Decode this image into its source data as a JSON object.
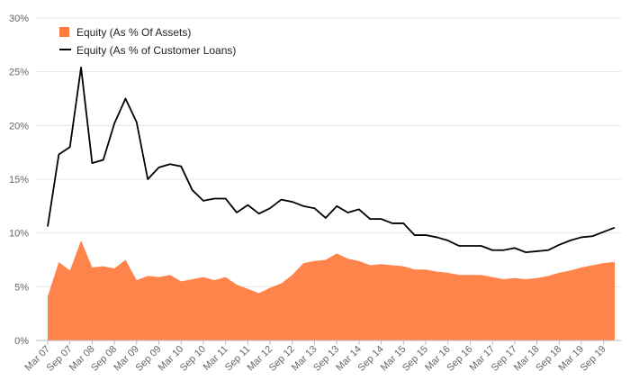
{
  "chart_data": {
    "type": "line",
    "title": "",
    "xlabel": "",
    "ylabel": "",
    "ylim": [
      0,
      30
    ],
    "y_ticks": [
      "0%",
      "5%",
      "10%",
      "15%",
      "20%",
      "25%",
      "30%"
    ],
    "y_tick_values": [
      0,
      5,
      10,
      15,
      20,
      25,
      30
    ],
    "x_tick_labels": [
      "Mar 07",
      "Sep 07",
      "Mar 08",
      "Sep 08",
      "Mar 09",
      "Sep 09",
      "Mar 10",
      "Sep 10",
      "Mar 11",
      "Sep 11",
      "Mar 12",
      "Sep 12",
      "Mar 13",
      "Sep 13",
      "Mar 14",
      "Sep 14",
      "Mar 15",
      "Sep 15",
      "Mar 16",
      "Sep 16",
      "Mar 17",
      "Sep 17",
      "Mar 18",
      "Sep 18",
      "Mar 19",
      "Sep 19"
    ],
    "grid": true,
    "legend_position": "top-left",
    "series": [
      {
        "name": "Equity (As % Of Assets)",
        "style": "area",
        "color": "#ff7a3d",
        "values": [
          4.1,
          7.3,
          6.5,
          9.3,
          6.8,
          6.9,
          6.7,
          7.5,
          5.6,
          6.0,
          5.9,
          6.1,
          5.5,
          5.7,
          5.9,
          5.6,
          5.9,
          5.2,
          4.8,
          4.4,
          4.9,
          5.3,
          6.1,
          7.2,
          7.4,
          7.5,
          8.1,
          7.6,
          7.4,
          7.0,
          7.1,
          7.0,
          6.9,
          6.6,
          6.6,
          6.4,
          6.3,
          6.1,
          6.1,
          6.1,
          5.9,
          5.7,
          5.8,
          5.7,
          5.8,
          6.0,
          6.3,
          6.5,
          6.8,
          7.0,
          7.2,
          7.3
        ]
      },
      {
        "name": "Equity (As % of Customer Loans)",
        "style": "line",
        "color": "#000000",
        "values": [
          10.6,
          17.3,
          18.0,
          25.4,
          16.5,
          16.8,
          20.2,
          22.5,
          20.3,
          15.0,
          16.1,
          16.4,
          16.2,
          14.0,
          13.0,
          13.2,
          13.2,
          11.9,
          12.6,
          11.8,
          12.3,
          13.1,
          12.9,
          12.5,
          12.3,
          11.4,
          12.5,
          11.9,
          12.2,
          11.3,
          11.3,
          10.9,
          10.9,
          9.8,
          9.8,
          9.6,
          9.3,
          8.8,
          8.8,
          8.8,
          8.4,
          8.4,
          8.6,
          8.2,
          8.3,
          8.4,
          8.9,
          9.3,
          9.6,
          9.7,
          10.1,
          10.5
        ]
      }
    ]
  }
}
